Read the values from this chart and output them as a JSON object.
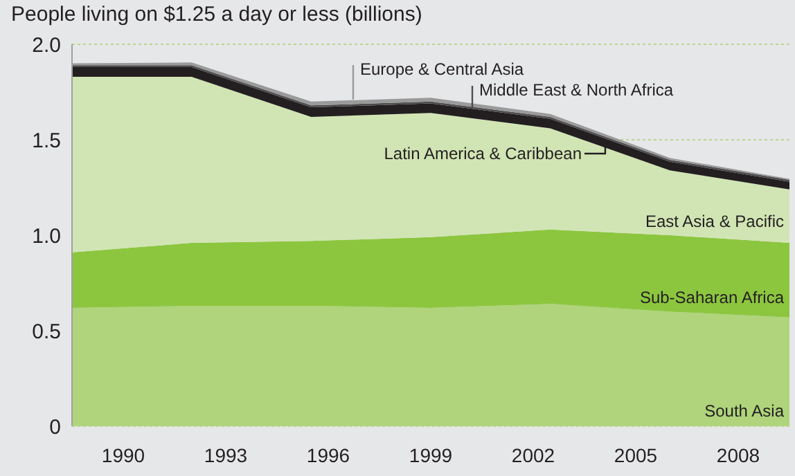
{
  "chart_data": {
    "type": "area",
    "stacked": true,
    "title": "People living on $1.25 a day or less (billions)",
    "x": [
      1988.5,
      1992,
      1995.5,
      1999,
      2002.5,
      2006,
      2009.5
    ],
    "series": [
      {
        "name": "South Asia",
        "color": "#afd47b",
        "values": [
          0.62,
          0.63,
          0.63,
          0.62,
          0.64,
          0.6,
          0.57
        ]
      },
      {
        "name": "Sub-Saharan Africa",
        "color": "#8cc63f",
        "values": [
          0.29,
          0.33,
          0.34,
          0.37,
          0.39,
          0.4,
          0.39
        ]
      },
      {
        "name": "East Asia & Pacific",
        "color": "#d1e5b4",
        "values": [
          0.92,
          0.87,
          0.65,
          0.65,
          0.53,
          0.34,
          0.28
        ]
      },
      {
        "name": "Latin America & Caribbean",
        "color": "#231f20",
        "values": [
          0.05,
          0.05,
          0.05,
          0.05,
          0.05,
          0.045,
          0.04
        ]
      },
      {
        "name": "Middle East & North Africa",
        "color": "#4d4d4d",
        "values": [
          0.01,
          0.01,
          0.01,
          0.01,
          0.01,
          0.01,
          0.01
        ]
      },
      {
        "name": "Europe & Central Asia",
        "color": "#9a9a9a",
        "values": [
          0.01,
          0.015,
          0.02,
          0.02,
          0.015,
          0.01,
          0.005
        ]
      }
    ],
    "xlim": [
      1988.5,
      2009.5
    ],
    "xticks": [
      1990,
      1993,
      1996,
      1999,
      2002,
      2005,
      2008
    ],
    "ylim": [
      0,
      2
    ],
    "yticks": [
      0,
      {
        "value": 0.5,
        "label": "0.5"
      },
      {
        "value": 1,
        "label": "1.0"
      },
      {
        "value": 1.5,
        "label": "1.5"
      },
      {
        "value": 2,
        "label": "2.0"
      }
    ],
    "grid": "y"
  }
}
